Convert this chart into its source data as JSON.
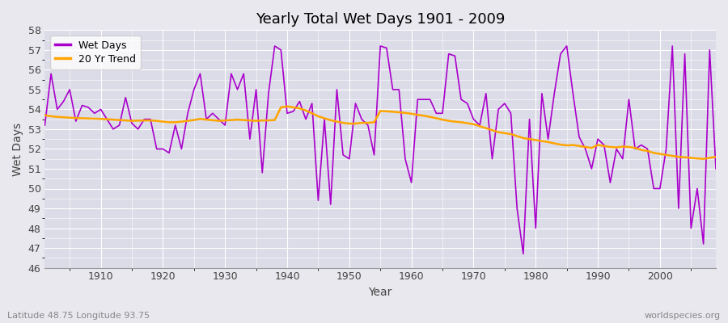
{
  "title": "Yearly Total Wet Days 1901 - 2009",
  "xlabel": "Year",
  "ylabel": "Wet Days",
  "lat_lon_label": "Latitude 48.75 Longitude 93.75",
  "source_label": "worldspecies.org",
  "xlim": [
    1901,
    2009
  ],
  "ylim": [
    46,
    58
  ],
  "yticks": [
    46,
    47,
    48,
    49,
    50,
    51,
    52,
    53,
    54,
    55,
    56,
    57,
    58
  ],
  "xticks": [
    1910,
    1920,
    1930,
    1940,
    1950,
    1960,
    1970,
    1980,
    1990,
    2000
  ],
  "wet_days_color": "#AA00CC",
  "trend_color": "#FFA500",
  "background_color": "#E8E8EE",
  "plot_bg_color": "#DCDCE8",
  "grid_color": "#FFFFFF",
  "years": [
    1901,
    1902,
    1903,
    1904,
    1905,
    1906,
    1907,
    1908,
    1909,
    1910,
    1911,
    1912,
    1913,
    1914,
    1915,
    1916,
    1917,
    1918,
    1919,
    1920,
    1921,
    1922,
    1923,
    1924,
    1925,
    1926,
    1927,
    1928,
    1929,
    1930,
    1931,
    1932,
    1933,
    1934,
    1935,
    1936,
    1937,
    1938,
    1939,
    1940,
    1941,
    1942,
    1943,
    1944,
    1945,
    1946,
    1947,
    1948,
    1949,
    1950,
    1951,
    1952,
    1953,
    1954,
    1955,
    1956,
    1957,
    1958,
    1959,
    1960,
    1961,
    1962,
    1963,
    1964,
    1965,
    1966,
    1967,
    1968,
    1969,
    1970,
    1971,
    1972,
    1973,
    1974,
    1975,
    1976,
    1977,
    1978,
    1979,
    1980,
    1981,
    1982,
    1983,
    1984,
    1985,
    1986,
    1987,
    1988,
    1989,
    1990,
    1991,
    1992,
    1993,
    1994,
    1995,
    1996,
    1997,
    1998,
    1999,
    2000,
    2001,
    2002,
    2003,
    2004,
    2005,
    2006,
    2007,
    2008,
    2009
  ],
  "wet_days": [
    53.2,
    55.8,
    54.0,
    54.4,
    55.0,
    53.4,
    54.2,
    54.1,
    53.8,
    54.0,
    53.5,
    53.0,
    53.2,
    54.6,
    53.3,
    53.0,
    53.5,
    53.5,
    52.0,
    52.0,
    51.8,
    53.2,
    52.0,
    53.8,
    55.0,
    55.8,
    53.5,
    53.8,
    53.5,
    53.2,
    55.8,
    55.0,
    55.8,
    52.5,
    55.0,
    50.8,
    54.8,
    57.2,
    57.0,
    53.8,
    53.9,
    54.4,
    53.5,
    54.3,
    49.4,
    53.5,
    49.2,
    55.0,
    51.7,
    51.5,
    54.3,
    53.5,
    53.2,
    51.7,
    57.2,
    57.1,
    55.0,
    55.0,
    51.5,
    50.3,
    54.5,
    54.5,
    54.5,
    53.8,
    53.8,
    56.8,
    56.7,
    54.5,
    54.3,
    53.5,
    53.2,
    54.8,
    51.5,
    54.0,
    54.3,
    53.8,
    49.0,
    46.7,
    53.5,
    48.0,
    54.8,
    52.5,
    54.8,
    56.8,
    57.2,
    54.8,
    52.6,
    52.0,
    51.0,
    52.5,
    52.2,
    50.3,
    52.0,
    51.5,
    54.5,
    52.0,
    52.2,
    52.0,
    50.0,
    50.0,
    52.0,
    57.2,
    49.0,
    56.8,
    48.0,
    50.0,
    47.2,
    57.0,
    51.0
  ],
  "trend": [
    53.7,
    53.65,
    53.62,
    53.6,
    53.58,
    53.56,
    53.55,
    53.54,
    53.53,
    53.52,
    53.5,
    53.48,
    53.46,
    53.44,
    53.42,
    53.43,
    53.44,
    53.44,
    53.42,
    53.38,
    53.35,
    53.35,
    53.38,
    53.42,
    53.46,
    53.52,
    53.48,
    53.45,
    53.42,
    53.44,
    53.46,
    53.48,
    53.46,
    53.44,
    53.42,
    53.44,
    53.44,
    53.46,
    54.1,
    54.15,
    54.1,
    54.05,
    53.95,
    53.8,
    53.65,
    53.55,
    53.45,
    53.38,
    53.32,
    53.28,
    53.28,
    53.32,
    53.32,
    53.35,
    53.92,
    53.9,
    53.88,
    53.85,
    53.82,
    53.78,
    53.72,
    53.68,
    53.62,
    53.55,
    53.48,
    53.42,
    53.38,
    53.35,
    53.3,
    53.25,
    53.15,
    53.05,
    52.95,
    52.85,
    52.8,
    52.75,
    52.65,
    52.55,
    52.5,
    52.45,
    52.4,
    52.35,
    52.28,
    52.22,
    52.18,
    52.2,
    52.15,
    52.1,
    52.05,
    52.2,
    52.15,
    52.1,
    52.08,
    52.12,
    52.1,
    52.05,
    51.95,
    51.9,
    51.8,
    51.75,
    51.7,
    51.65,
    51.6,
    51.58,
    51.55,
    51.52,
    51.5,
    51.55,
    51.6
  ]
}
